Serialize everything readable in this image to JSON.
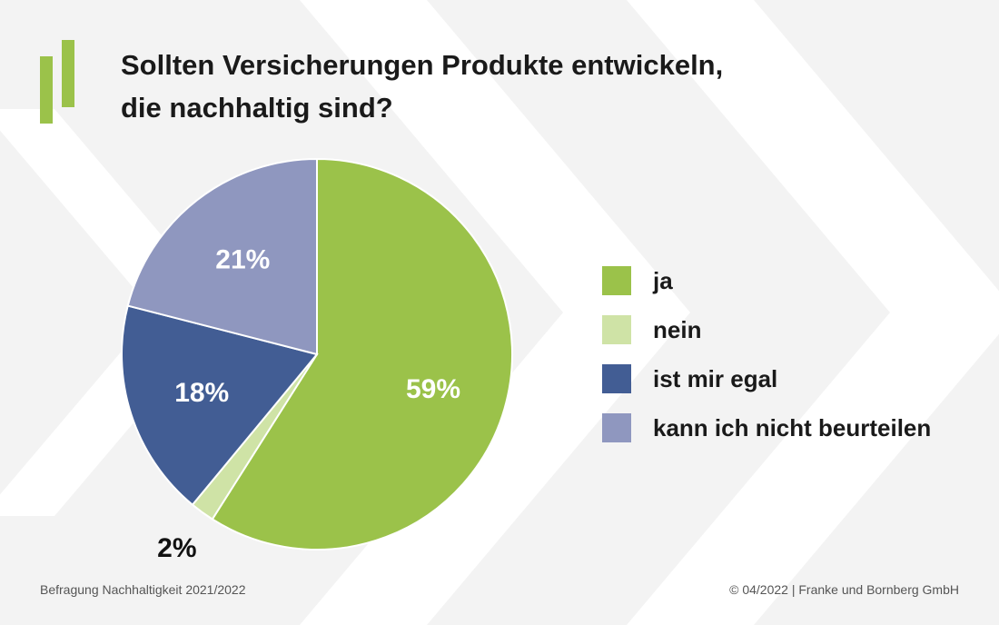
{
  "title_lines": [
    "Sollten Versicherungen Produkte entwickeln,",
    "die nachhaltig sind?"
  ],
  "chart_data": {
    "type": "pie",
    "title": "Sollten Versicherungen Produkte entwickeln, die nachhaltig sind?",
    "start": "12 o'clock, clockwise",
    "slices": [
      {
        "label": "ja",
        "value": 59,
        "display": "59%",
        "color": "#9bc24a"
      },
      {
        "label": "nein",
        "value": 2,
        "display": "2%",
        "color": "#cfe3a6"
      },
      {
        "label": "ist mir egal",
        "value": 18,
        "display": "18%",
        "color": "#425d94"
      },
      {
        "label": "kann ich nicht beurteilen",
        "value": 21,
        "display": "21%",
        "color": "#8f97bf"
      }
    ],
    "legend_position": "right"
  },
  "footer": {
    "left": "Befragung Nachhaltigkeit 2021/2022",
    "right": "© 04/2022 | Franke und Bornberg GmbH"
  },
  "colors": {
    "brand": "#9bc24a",
    "background": "#f3f3f3"
  }
}
